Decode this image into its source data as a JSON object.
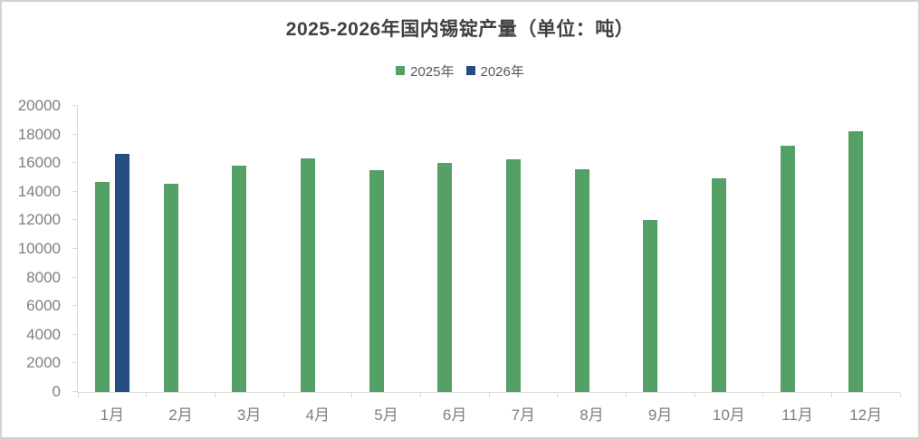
{
  "chart": {
    "title": "2025-2026年国内锡锭产量（单位：吨）"
  },
  "chart_data": {
    "type": "bar",
    "title": "2025-2026年国内锡锭产量（单位：吨）",
    "categories": [
      "1月",
      "2月",
      "3月",
      "4月",
      "5月",
      "6月",
      "7月",
      "8月",
      "9月",
      "10月",
      "11月",
      "12月"
    ],
    "series": [
      {
        "name": "2025年",
        "color": "#55a066",
        "values": [
          14700,
          14550,
          15850,
          16350,
          15500,
          16000,
          16250,
          15550,
          12050,
          14950,
          17200,
          18250
        ]
      },
      {
        "name": "2026年",
        "color": "#254d80",
        "values": [
          16650,
          null,
          null,
          null,
          null,
          null,
          null,
          null,
          null,
          null,
          null,
          null
        ]
      }
    ],
    "xlabel": "",
    "ylabel": "",
    "ylim": [
      0,
      20000
    ],
    "ytick_step": 2000,
    "grid": false,
    "legend_position": "top-center"
  },
  "colors": {
    "frame_border": "#d2d2d2",
    "axis_line": "#d9d9d9",
    "tick_label": "#7f7f7f",
    "title_text": "#404040",
    "legend_text": "#595959",
    "background": "#ffffff"
  }
}
